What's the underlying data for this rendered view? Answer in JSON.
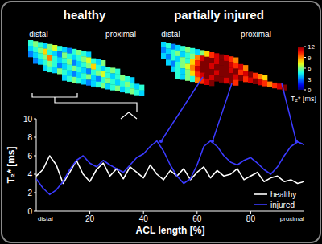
{
  "chart_data": [
    {
      "type": "heatmap",
      "title": "healthy",
      "annotations": [
        "distal",
        "proximal"
      ],
      "cells": [
        [
          5,
          6,
          5,
          4,
          6,
          7,
          5,
          4,
          3,
          5,
          6,
          5,
          4,
          null,
          null,
          null,
          null,
          null,
          null,
          null,
          null,
          null,
          null,
          null
        ],
        [
          4,
          5,
          6,
          8,
          5,
          4,
          3,
          6,
          5,
          4,
          5,
          6,
          7,
          5,
          4,
          6,
          null,
          null,
          null,
          null,
          null,
          null,
          null,
          null
        ],
        [
          3,
          4,
          5,
          6,
          9,
          5,
          4,
          5,
          6,
          3,
          4,
          5,
          6,
          8,
          5,
          4,
          5,
          6,
          5,
          null,
          null,
          null,
          null,
          null
        ],
        [
          null,
          3,
          4,
          5,
          6,
          5,
          3,
          4,
          5,
          6,
          5,
          4,
          3,
          5,
          6,
          7,
          5,
          4,
          5,
          6,
          5,
          4,
          null,
          null
        ],
        [
          null,
          null,
          null,
          4,
          5,
          4,
          6,
          5,
          4,
          3,
          4,
          5,
          6,
          4,
          3,
          5,
          6,
          5,
          4,
          5,
          6,
          5,
          4,
          5
        ],
        [
          null,
          null,
          null,
          null,
          null,
          null,
          null,
          4,
          5,
          6,
          5,
          4,
          3,
          4,
          5,
          6,
          4,
          5,
          6,
          4,
          5,
          6,
          5,
          4
        ]
      ]
    },
    {
      "type": "heatmap",
      "title": "partially injured",
      "annotations": [
        "distal",
        "proximal"
      ],
      "cells": [
        [
          4,
          5,
          3,
          4,
          5,
          6,
          5,
          4,
          6,
          8,
          10,
          11,
          12,
          11,
          10,
          9,
          null,
          null,
          null,
          null,
          null,
          null,
          null,
          null,
          null,
          null
        ],
        [
          3,
          4,
          5,
          6,
          4,
          5,
          6,
          9,
          11,
          12,
          12,
          11,
          12,
          12,
          11,
          10,
          11,
          9,
          null,
          null,
          null,
          null,
          null,
          null,
          null,
          null
        ],
        [
          4,
          3,
          5,
          4,
          6,
          5,
          8,
          10,
          12,
          12,
          11,
          12,
          12,
          12,
          11,
          12,
          10,
          11,
          12,
          10,
          9,
          8,
          null,
          null,
          null,
          null
        ],
        [
          null,
          4,
          3,
          5,
          6,
          7,
          9,
          11,
          12,
          12,
          12,
          11,
          12,
          12,
          12,
          11,
          12,
          10,
          11,
          12,
          11,
          10,
          9,
          10,
          11,
          12
        ],
        [
          null,
          null,
          4,
          5,
          4,
          6,
          8,
          10,
          11,
          12,
          11,
          12,
          12,
          11,
          12,
          10,
          null,
          null,
          null,
          null,
          null,
          null,
          null,
          null,
          null,
          null
        ],
        [
          null,
          null,
          null,
          5,
          4,
          6,
          5,
          9,
          10,
          11,
          12,
          null,
          null,
          null,
          null,
          null,
          null,
          null,
          null,
          null,
          null,
          null,
          null,
          null,
          null,
          null
        ]
      ],
      "colorbar_range": [
        0,
        12
      ],
      "colorbar_ticks": [
        0,
        3,
        6,
        9,
        12
      ],
      "colorbar_label": "T₂* [ms]"
    },
    {
      "type": "line",
      "xlabel": "ACL length [%]",
      "ylabel": "T₂* [ms]",
      "annotations": [
        "distal",
        "proximal"
      ],
      "x": [
        0,
        2.5,
        5,
        7.5,
        10,
        12.5,
        15,
        17.5,
        20,
        22.5,
        25,
        27.5,
        30,
        32.5,
        35,
        37.5,
        40,
        42.5,
        45,
        47.5,
        50,
        52.5,
        55,
        57.5,
        60,
        62.5,
        65,
        67.5,
        70,
        72.5,
        75,
        77.5,
        80,
        82.5,
        85,
        87.5,
        90,
        92.5,
        95,
        97.5,
        100
      ],
      "series": [
        {
          "name": "healthy",
          "color": "#ffffff",
          "values": [
            3.8,
            4.5,
            6,
            5,
            3,
            4.2,
            5.5,
            4,
            3.2,
            4.5,
            5.2,
            3.8,
            4.6,
            3.5,
            4.8,
            4.2,
            3.6,
            5,
            4,
            3.4,
            4.4,
            3.8,
            4.6,
            3.4,
            4.2,
            4.8,
            3.6,
            4.4,
            3.8,
            4,
            4.6,
            3.4,
            3.8,
            4.2,
            3.2,
            3.6,
            3.8,
            3.2,
            3.4,
            3,
            3.2
          ]
        },
        {
          "name": "injured",
          "color": "#3b3bff",
          "values": [
            3.5,
            2.5,
            1.8,
            2.3,
            3.2,
            4.5,
            5.5,
            6,
            5.2,
            4.8,
            5.5,
            5,
            4.6,
            4.2,
            5,
            5.8,
            6.2,
            7,
            7.6,
            6.5,
            5,
            3.8,
            3,
            3.5,
            5,
            7,
            7.6,
            7,
            6,
            5.3,
            5,
            5.5,
            5.8,
            5.2,
            4.5,
            4,
            4.8,
            6,
            7,
            7.5,
            7.2
          ]
        }
      ],
      "xlim": [
        0,
        100
      ],
      "ylim": [
        0,
        10
      ],
      "xticks": [
        20,
        40,
        60,
        80
      ],
      "yticks": [
        0,
        2,
        4,
        6,
        8,
        10
      ],
      "legend": "lower right",
      "grid": false
    }
  ]
}
